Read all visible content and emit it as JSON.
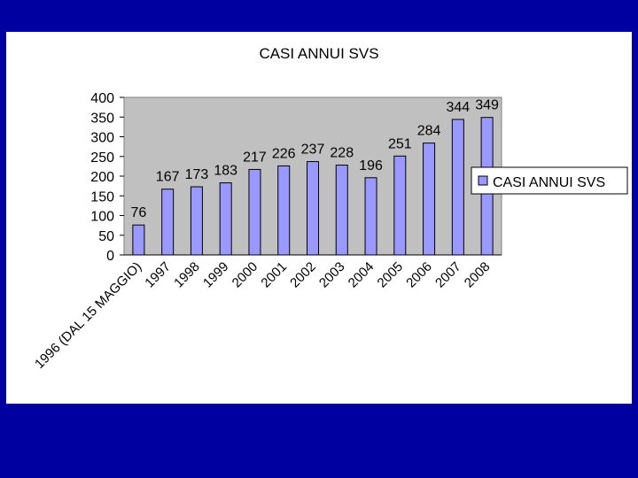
{
  "chart_data": {
    "type": "bar",
    "title": "CASI ANNUI SVS",
    "categories": [
      "1996 (DAL 15 MAGGIO)",
      "1997",
      "1998",
      "1999",
      "2000",
      "2001",
      "2002",
      "2003",
      "2004",
      "2005",
      "2006",
      "2007",
      "2008"
    ],
    "series": [
      {
        "name": "CASI ANNUI SVS",
        "values": [
          76,
          167,
          173,
          183,
          217,
          226,
          237,
          228,
          196,
          251,
          284,
          344,
          349
        ]
      }
    ],
    "ylim": [
      0,
      400
    ],
    "yticks": [
      0,
      50,
      100,
      150,
      200,
      250,
      300,
      350,
      400
    ],
    "legend": "right",
    "colors": {
      "bar": "#9999ff",
      "plot_bg": "#c0c0c0",
      "slide_bg": "#0000a0"
    }
  }
}
